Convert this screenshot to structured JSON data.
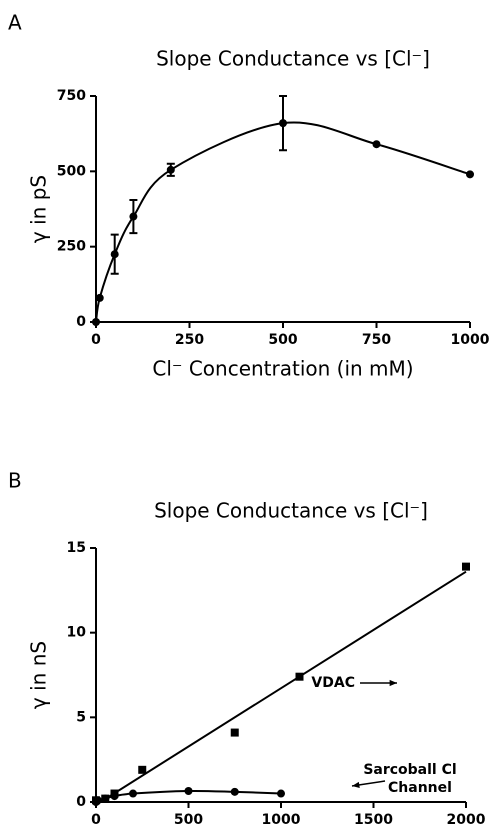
{
  "chart_data": [
    {
      "type": "line",
      "panel": "A",
      "title": "Slope Conductance vs [Cl⁻]",
      "x_label": "Cl⁻ Concentration (in mM)",
      "y_label": "γ in pS",
      "xlim": [
        0,
        1000
      ],
      "xticks": [
        0,
        250,
        500,
        750,
        1000
      ],
      "ylim": [
        0,
        750
      ],
      "yticks": [
        0,
        250,
        500,
        750
      ],
      "series": [
        {
          "color": "#000000",
          "marker": "circle",
          "connect": "smooth",
          "x": [
            0,
            10,
            50,
            100,
            200,
            500,
            750,
            1000
          ],
          "values": [
            0,
            80,
            225,
            350,
            505,
            660,
            590,
            490
          ],
          "errors": [
            null,
            null,
            65,
            55,
            20,
            90,
            null,
            null
          ]
        }
      ],
      "annotations": []
    },
    {
      "type": "line",
      "panel": "B",
      "title": "Slope Conductance vs [Cl⁻]",
      "x_label": "Cl⁻ Concentration (in mM)",
      "y_label": "γ in nS",
      "xlim": [
        0,
        2000
      ],
      "xticks": [
        0,
        500,
        1000,
        1500,
        2000
      ],
      "ylim": [
        0,
        15
      ],
      "yticks": [
        0,
        5,
        10,
        15
      ],
      "series": [
        {
          "color": "#000000",
          "marker": "square",
          "connect": "fit",
          "x": [
            0,
            50,
            100,
            250,
            750,
            1100,
            2000
          ],
          "values": [
            0.1,
            0.2,
            0.5,
            1.9,
            4.1,
            7.4,
            13.9
          ]
        },
        {
          "color": "#000000",
          "marker": "circle",
          "connect": "smooth",
          "x": [
            0,
            10,
            50,
            100,
            200,
            500,
            750,
            1000
          ],
          "values": [
            0,
            0.1,
            0.2,
            0.35,
            0.5,
            0.65,
            0.6,
            0.5
          ]
        }
      ],
      "annotations": [
        "VDAC",
        "Sarcoball Cl",
        "Channel"
      ]
    }
  ]
}
